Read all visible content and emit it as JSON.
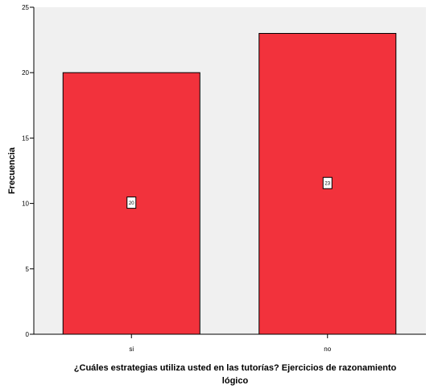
{
  "chart_data": {
    "type": "bar",
    "categories": [
      "si",
      "no"
    ],
    "values": [
      20,
      23
    ],
    "data_labels": [
      "20",
      "23"
    ],
    "title": "",
    "xlabel_lines": [
      "¿Cuáles estrategias utiliza usted en las tutorías? Ejercicios de razonamiento",
      "lógico"
    ],
    "ylabel": "Frecuencia",
    "ylim": [
      0,
      25
    ],
    "yticks": [
      0,
      5,
      10,
      15,
      20,
      25
    ],
    "ytick_labels": [
      "0",
      "5",
      "10",
      "15",
      "20",
      "25"
    ],
    "grid": false,
    "legend": "none",
    "colors": {
      "bar_fill": "#f2323c",
      "bar_stroke": "#000000",
      "plot_background": "#f0f0f0",
      "axis": "#000000"
    }
  }
}
